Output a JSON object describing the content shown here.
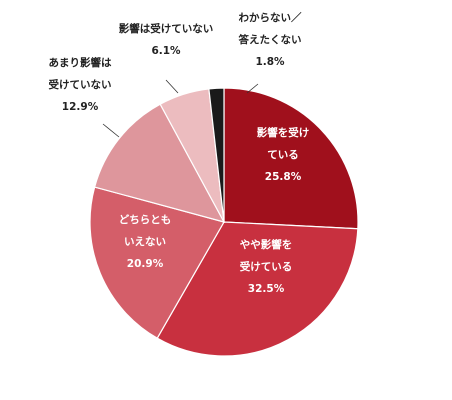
{
  "chart_data": {
    "type": "pie",
    "title": "",
    "start_angle_deg": 0,
    "direction": "clockwise",
    "slices": [
      {
        "label_lines": [
          "影響を受け",
          "ている"
        ],
        "value": 25.8,
        "value_text": "25.8%",
        "color": "#a0101c",
        "label_inside": true
      },
      {
        "label_lines": [
          "やや影響を",
          "受けている"
        ],
        "value": 32.5,
        "value_text": "32.5%",
        "color": "#c8303f",
        "label_inside": true
      },
      {
        "label_lines": [
          "どちらとも",
          "いえない"
        ],
        "value": 20.9,
        "value_text": "20.9%",
        "color": "#d45e69",
        "label_inside": true
      },
      {
        "label_lines": [
          "あまり影響は",
          "受けていない"
        ],
        "value": 12.9,
        "value_text": "12.9%",
        "color": "#de969c",
        "label_inside": false
      },
      {
        "label_lines": [
          "影響は受けていない"
        ],
        "value": 6.1,
        "value_text": "6.1%",
        "color": "#ecbcbf",
        "label_inside": false
      },
      {
        "label_lines": [
          "わからない／",
          "答えたくない"
        ],
        "value": 1.8,
        "value_text": "1.8%",
        "color": "#1a1a1a",
        "label_inside": false
      }
    ]
  }
}
